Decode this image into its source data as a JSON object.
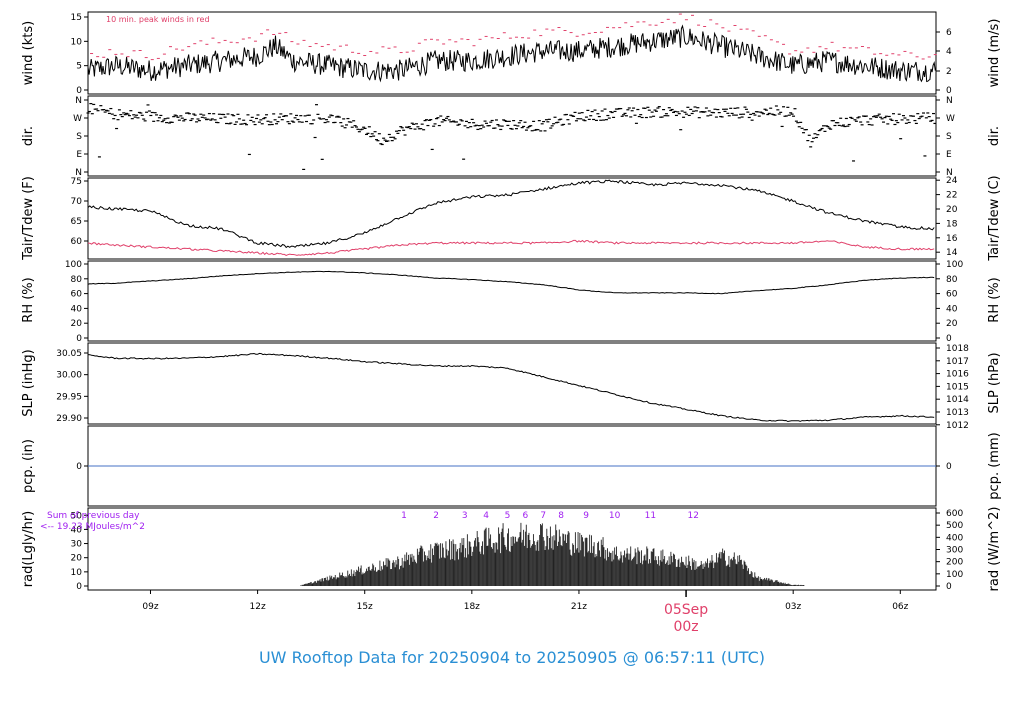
{
  "title": "UW Rooftop Data for 20250904  to  20250905 @ 06:57:11  (UTC)",
  "colors": {
    "peak": "#e0406a",
    "dew": "#e0406a",
    "title": "#2a8fd4",
    "annot": "#a020f0",
    "pcp": "#4472c4",
    "line": "#000000"
  },
  "time_axis": {
    "start_hour": 7.25,
    "end_hour": 31.0,
    "ticks": [
      {
        "hour": 9,
        "label": "09z"
      },
      {
        "hour": 12,
        "label": "12z"
      },
      {
        "hour": 15,
        "label": "15z"
      },
      {
        "hour": 18,
        "label": "18z"
      },
      {
        "hour": 21,
        "label": "21z"
      },
      {
        "hour": 24,
        "label": ""
      },
      {
        "hour": 27,
        "label": "03z"
      },
      {
        "hour": 30,
        "label": "06z"
      }
    ],
    "day_marker": {
      "hour": 24,
      "line1": "05Sep",
      "line2": "00z"
    }
  },
  "panels": {
    "wind": {
      "left_label": "wind (kts)",
      "right_label": "wind (m/s)",
      "note": "10 min. peak winds in red",
      "left_ticks": [
        "0",
        "5",
        "10",
        "15"
      ],
      "right_ticks": [
        "0",
        "2",
        "4",
        "6"
      ]
    },
    "dir": {
      "left_label": "dir.",
      "right_label": "dir.",
      "ticks": [
        "N",
        "E",
        "S",
        "W",
        "N"
      ]
    },
    "temp": {
      "left_label": "Tair/Tdew (F)",
      "right_label": "Tair/Tdew (C)",
      "left_ticks": [
        "60",
        "65",
        "70",
        "75"
      ],
      "right_ticks": [
        "14",
        "16",
        "18",
        "20",
        "22",
        "24"
      ]
    },
    "rh": {
      "left_label": "RH (%)",
      "right_label": "RH (%)",
      "ticks": [
        "0",
        "20",
        "40",
        "60",
        "80",
        "100"
      ]
    },
    "slp": {
      "left_label": "SLP (inHg)",
      "right_label": "SLP (hPa)",
      "left_ticks": [
        "29.90",
        "29.95",
        "30.00",
        "30.05"
      ],
      "right_ticks": [
        "1012",
        "1013",
        "1014",
        "1015",
        "1016",
        "1017",
        "1018"
      ]
    },
    "pcp": {
      "left_label": "pcp. (in)",
      "right_label": "pcp. (mm)",
      "left_ticks": [
        "0"
      ],
      "right_ticks": [
        "0"
      ]
    },
    "rad": {
      "left_label": "rad(Lgly/hr)",
      "right_label": "rad (W/m^2)",
      "left_ticks": [
        "0",
        "10",
        "20",
        "30",
        "40",
        "50"
      ],
      "right_ticks": [
        "0",
        "100",
        "200",
        "300",
        "400",
        "500",
        "600"
      ],
      "sum_label": "Sum of previous day",
      "sum_value": "<-- 19.23 MJoules/m^2",
      "hour_labels": [
        "1",
        "2",
        "3",
        "4",
        "5",
        "6",
        "7",
        "8",
        "9",
        "10",
        "11",
        "12"
      ]
    }
  },
  "chart_data": [
    {
      "type": "line",
      "title": "wind",
      "x_hours": [
        7.25,
        8,
        9,
        10,
        11,
        12,
        12.5,
        13,
        14,
        15,
        16,
        17,
        18,
        19,
        20,
        21,
        22,
        23,
        24,
        25,
        26,
        27,
        28,
        29,
        30,
        31
      ],
      "series": [
        {
          "values_kts": [
            4,
            5,
            4,
            5,
            6,
            7,
            9,
            6,
            5,
            4,
            4,
            6,
            6,
            7,
            8,
            8,
            9,
            10,
            11,
            9,
            7,
            5,
            6,
            5,
            4,
            4
          ]
        },
        {
          "name": "10 min. peak winds in red",
          "values_kts": [
            7,
            8,
            7,
            9,
            10,
            11,
            12,
            10,
            9,
            8,
            8,
            10,
            10,
            11,
            12,
            12,
            13,
            14,
            15,
            13,
            11,
            8,
            9,
            8,
            7,
            7
          ]
        }
      ],
      "ylim_kts": [
        0,
        15.5
      ],
      "ylim_ms": [
        0,
        8
      ]
    },
    {
      "type": "scatter",
      "title": "dir.",
      "x_hours": [
        7.25,
        8,
        9,
        10,
        11,
        12,
        13,
        14,
        15,
        15.5,
        16,
        17,
        18,
        19,
        20,
        21,
        22,
        23,
        24,
        25,
        26,
        27,
        27.5,
        28,
        29,
        30,
        31
      ],
      "values_deg": [
        320,
        290,
        275,
        270,
        265,
        262,
        268,
        268,
        215,
        160,
        205,
        255,
        240,
        240,
        230,
        280,
        290,
        300,
        300,
        295,
        300,
        305,
        150,
        240,
        260,
        265,
        270
      ],
      "ylim_deg": [
        0,
        360
      ]
    },
    {
      "type": "line",
      "title": "Tair/Tdew",
      "x_hours": [
        7.25,
        8,
        9,
        10,
        11,
        12,
        13,
        14,
        15,
        16,
        17,
        18,
        19,
        20,
        21,
        22,
        23,
        24,
        25,
        26,
        27,
        28,
        29,
        30,
        31
      ],
      "series": [
        {
          "values_F": [
            68.5,
            68,
            67.5,
            64,
            63,
            59.5,
            58.5,
            59.5,
            62,
            66,
            69.5,
            71,
            71.5,
            73,
            74.5,
            75,
            74,
            74.5,
            74,
            72.5,
            70,
            67,
            65,
            63.5,
            63
          ]
        },
        {
          "values_F": [
            59.5,
            59,
            58.5,
            58,
            57.5,
            57,
            56.5,
            57,
            58,
            59,
            59.5,
            59.5,
            59.5,
            59.5,
            60,
            59.5,
            59.5,
            59.5,
            59.5,
            59.5,
            59.5,
            60,
            58.5,
            58,
            58
          ]
        }
      ],
      "ylim_F": [
        56.5,
        75.5
      ],
      "ylim_C": [
        13.6,
        24.2
      ]
    },
    {
      "type": "line",
      "title": "RH (%)",
      "x_hours": [
        7.25,
        8,
        9,
        10,
        11,
        12,
        13,
        14,
        15,
        16,
        17,
        18,
        19,
        20,
        21,
        22,
        23,
        24,
        25,
        26,
        27,
        28,
        29,
        30,
        31
      ],
      "values": [
        73,
        74,
        77,
        80,
        84,
        87,
        89,
        90,
        88,
        85,
        81,
        79,
        76,
        72,
        65,
        61,
        61,
        61,
        60,
        64,
        67,
        72,
        78,
        81,
        82
      ],
      "ylim": [
        0,
        100
      ]
    },
    {
      "type": "line",
      "title": "SLP",
      "x_hours": [
        7.25,
        8,
        9,
        10,
        11,
        12,
        13,
        14,
        15,
        16,
        17,
        18,
        19,
        20,
        21,
        22,
        23,
        24,
        25,
        26,
        27,
        28,
        29,
        30,
        31
      ],
      "values_inHg": [
        30.045,
        30.038,
        30.037,
        30.038,
        30.042,
        30.048,
        30.044,
        30.038,
        30.03,
        30.025,
        30.02,
        30.02,
        30.015,
        29.995,
        29.975,
        29.955,
        29.935,
        29.92,
        29.905,
        29.895,
        29.893,
        29.895,
        29.902,
        29.905,
        29.902
      ],
      "ylim_inHg": [
        29.885,
        30.055
      ],
      "ylim_hPa": [
        1012,
        1018
      ]
    },
    {
      "type": "line",
      "title": "pcp.",
      "x_hours": [
        7.25,
        31
      ],
      "values_in": [
        0,
        0
      ],
      "ylim_in": [
        -1,
        0.8
      ]
    },
    {
      "type": "bar",
      "title": "rad",
      "x_hours": [
        7.25,
        12,
        13.2,
        14,
        15,
        16,
        16.5,
        17,
        17.5,
        18,
        18.5,
        19,
        19.5,
        20,
        20.5,
        21,
        21.5,
        22,
        22.5,
        23,
        23.5,
        24,
        24.5,
        25,
        25.5,
        26,
        26.5,
        27,
        31
      ],
      "values_Wm2": [
        0,
        0,
        5,
        80,
        170,
        250,
        310,
        360,
        380,
        420,
        470,
        500,
        510,
        530,
        480,
        430,
        420,
        330,
        320,
        310,
        280,
        250,
        200,
        300,
        260,
        80,
        50,
        10,
        0
      ],
      "ylim_Wm2": [
        0,
        620
      ]
    }
  ]
}
